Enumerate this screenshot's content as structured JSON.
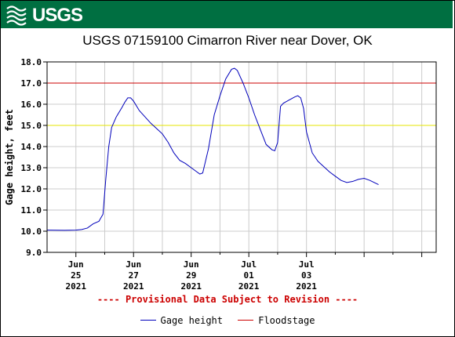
{
  "header": {
    "logo_text": "USGS",
    "logo_icon": "usgs-wave-icon",
    "brand_color": "#006f41"
  },
  "chart_data": {
    "type": "line",
    "title": "USGS 07159100 Cimarron River near Dover, OK",
    "ylabel": "Gage height, feet",
    "xlabel": "",
    "ylim": [
      9.0,
      18.0
    ],
    "yticks": [
      "9.0",
      "10.0",
      "11.0",
      "12.0",
      "13.0",
      "14.0",
      "15.0",
      "16.0",
      "17.0",
      "18.0"
    ],
    "xlim": [
      0,
      6.75
    ],
    "xticks": [
      {
        "x": 0.5,
        "lines": [
          "Jun",
          "25",
          "2021"
        ]
      },
      {
        "x": 1.5,
        "lines": [
          "Jun",
          "27",
          "2021"
        ]
      },
      {
        "x": 2.5,
        "lines": [
          "Jun",
          "29",
          "2021"
        ]
      },
      {
        "x": 3.5,
        "lines": [
          "Jul",
          "01",
          "2021"
        ]
      },
      {
        "x": 4.5,
        "lines": [
          "Jul",
          "03",
          "2021"
        ]
      }
    ],
    "grid": true,
    "series": [
      {
        "name": "Gage height",
        "color": "#0000bb",
        "points": [
          [
            0.0,
            10.05
          ],
          [
            0.3,
            10.04
          ],
          [
            0.5,
            10.05
          ],
          [
            0.6,
            10.08
          ],
          [
            0.7,
            10.15
          ],
          [
            0.8,
            10.35
          ],
          [
            0.9,
            10.47
          ],
          [
            0.97,
            10.8
          ],
          [
            1.02,
            12.5
          ],
          [
            1.07,
            14.0
          ],
          [
            1.12,
            14.9
          ],
          [
            1.2,
            15.4
          ],
          [
            1.3,
            15.85
          ],
          [
            1.35,
            16.1
          ],
          [
            1.4,
            16.3
          ],
          [
            1.45,
            16.3
          ],
          [
            1.5,
            16.15
          ],
          [
            1.6,
            15.7
          ],
          [
            1.7,
            15.4
          ],
          [
            1.8,
            15.1
          ],
          [
            1.9,
            14.85
          ],
          [
            2.0,
            14.6
          ],
          [
            2.1,
            14.2
          ],
          [
            2.2,
            13.7
          ],
          [
            2.3,
            13.35
          ],
          [
            2.4,
            13.2
          ],
          [
            2.5,
            13.0
          ],
          [
            2.6,
            12.8
          ],
          [
            2.65,
            12.7
          ],
          [
            2.7,
            12.75
          ],
          [
            2.8,
            13.9
          ],
          [
            2.9,
            15.5
          ],
          [
            3.0,
            16.4
          ],
          [
            3.1,
            17.2
          ],
          [
            3.2,
            17.65
          ],
          [
            3.25,
            17.7
          ],
          [
            3.3,
            17.6
          ],
          [
            3.4,
            17.0
          ],
          [
            3.5,
            16.3
          ],
          [
            3.6,
            15.5
          ],
          [
            3.7,
            14.8
          ],
          [
            3.8,
            14.1
          ],
          [
            3.9,
            13.85
          ],
          [
            3.95,
            13.8
          ],
          [
            4.0,
            14.2
          ],
          [
            4.05,
            15.9
          ],
          [
            4.1,
            16.05
          ],
          [
            4.2,
            16.2
          ],
          [
            4.3,
            16.35
          ],
          [
            4.35,
            16.4
          ],
          [
            4.4,
            16.3
          ],
          [
            4.45,
            15.8
          ],
          [
            4.5,
            14.7
          ],
          [
            4.6,
            13.7
          ],
          [
            4.7,
            13.3
          ],
          [
            4.8,
            13.05
          ],
          [
            4.9,
            12.8
          ],
          [
            5.0,
            12.6
          ],
          [
            5.1,
            12.4
          ],
          [
            5.2,
            12.3
          ],
          [
            5.3,
            12.35
          ],
          [
            5.4,
            12.45
          ],
          [
            5.5,
            12.5
          ],
          [
            5.6,
            12.4
          ],
          [
            5.75,
            12.2
          ]
        ]
      }
    ],
    "reference_lines": [
      {
        "name": "Floodstage",
        "value": 17.0,
        "color": "#cc0000"
      },
      {
        "name": "",
        "value": 15.0,
        "color": "#e5e500"
      }
    ],
    "annotations": [
      "---- Provisional Data Subject to Revision ----"
    ],
    "legend": {
      "placement": "bottom",
      "entries": [
        {
          "label": "Gage height",
          "color": "#0000bb"
        },
        {
          "label": "Floodstage",
          "color": "#cc0000"
        }
      ]
    }
  }
}
